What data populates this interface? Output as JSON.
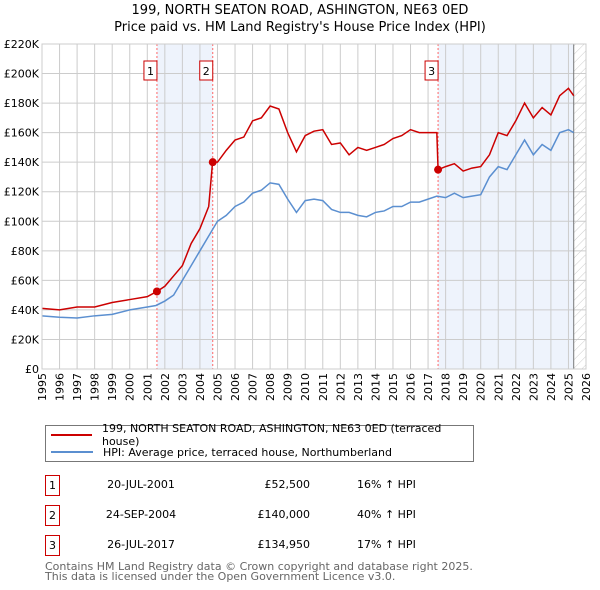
{
  "title": "199, NORTH SEATON ROAD, ASHINGTON, NE63 0ED",
  "subtitle": "Price paid vs. HM Land Registry's House Price Index (HPI)",
  "colors": {
    "property": "#cc0000",
    "hpi": "#5b8fd0",
    "shade": "#eef3fc"
  },
  "chart_data": {
    "type": "line",
    "xlim": [
      1995,
      2026
    ],
    "ylim": [
      0,
      220000
    ],
    "x_ticks": [
      "1995",
      "1996",
      "1997",
      "1998",
      "1999",
      "2000",
      "2001",
      "2002",
      "2003",
      "2004",
      "2005",
      "2006",
      "2007",
      "2008",
      "2009",
      "2010",
      "2011",
      "2012",
      "2013",
      "2014",
      "2015",
      "2016",
      "2017",
      "2018",
      "2019",
      "2020",
      "2021",
      "2022",
      "2023",
      "2024",
      "2025",
      "2026"
    ],
    "y_ticks": [
      {
        "v": 0,
        "label": "£0"
      },
      {
        "v": 20000,
        "label": "£20K"
      },
      {
        "v": 40000,
        "label": "£40K"
      },
      {
        "v": 60000,
        "label": "£60K"
      },
      {
        "v": 80000,
        "label": "£80K"
      },
      {
        "v": 100000,
        "label": "£100K"
      },
      {
        "v": 120000,
        "label": "£120K"
      },
      {
        "v": 140000,
        "label": "£140K"
      },
      {
        "v": 160000,
        "label": "£160K"
      },
      {
        "v": 180000,
        "label": "£180K"
      },
      {
        "v": 200000,
        "label": "£200K"
      },
      {
        "v": 220000,
        "label": "£220K"
      }
    ],
    "grid": true,
    "data_end": 2025.3,
    "series": [
      {
        "name": "199, NORTH SEATON ROAD, ASHINGTON, NE63 0ED (terraced house)",
        "color": "#cc0000",
        "points": [
          [
            1995,
            41
          ],
          [
            1996,
            40
          ],
          [
            1997,
            42
          ],
          [
            1998,
            42
          ],
          [
            1999,
            45
          ],
          [
            2000,
            47
          ],
          [
            2001,
            49
          ],
          [
            2001.55,
            52.5
          ],
          [
            2002,
            56
          ],
          [
            2002.5,
            63
          ],
          [
            2003,
            70
          ],
          [
            2003.5,
            85
          ],
          [
            2004,
            95
          ],
          [
            2004.5,
            110
          ],
          [
            2004.72,
            140
          ],
          [
            2005,
            140
          ],
          [
            2005.5,
            148
          ],
          [
            2006,
            155
          ],
          [
            2006.5,
            157
          ],
          [
            2007,
            168
          ],
          [
            2007.5,
            170
          ],
          [
            2008,
            178
          ],
          [
            2008.5,
            176
          ],
          [
            2009,
            160
          ],
          [
            2009.5,
            147
          ],
          [
            2010,
            158
          ],
          [
            2010.5,
            161
          ],
          [
            2011,
            162
          ],
          [
            2011.5,
            152
          ],
          [
            2012,
            153
          ],
          [
            2012.5,
            145
          ],
          [
            2013,
            150
          ],
          [
            2013.5,
            148
          ],
          [
            2014,
            150
          ],
          [
            2014.5,
            152
          ],
          [
            2015,
            156
          ],
          [
            2015.5,
            158
          ],
          [
            2016,
            162
          ],
          [
            2016.5,
            160
          ],
          [
            2017.5,
            160
          ],
          [
            2017.57,
            134.95
          ],
          [
            2018,
            137
          ],
          [
            2018.5,
            139
          ],
          [
            2019,
            134
          ],
          [
            2019.5,
            136
          ],
          [
            2020,
            137
          ],
          [
            2020.5,
            145
          ],
          [
            2021,
            160
          ],
          [
            2021.5,
            158
          ],
          [
            2022,
            168
          ],
          [
            2022.5,
            180
          ],
          [
            2023,
            170
          ],
          [
            2023.5,
            177
          ],
          [
            2024,
            172
          ],
          [
            2024.5,
            185
          ],
          [
            2025,
            190
          ],
          [
            2025.3,
            185
          ]
        ]
      },
      {
        "name": "HPI: Average price, terraced house, Northumberland",
        "color": "#5b8fd0",
        "points": [
          [
            1995,
            36
          ],
          [
            1996,
            35
          ],
          [
            1997,
            34.5
          ],
          [
            1998,
            36
          ],
          [
            1999,
            37
          ],
          [
            2000,
            40
          ],
          [
            2001,
            42
          ],
          [
            2001.5,
            43
          ],
          [
            2002,
            46
          ],
          [
            2002.5,
            50
          ],
          [
            2003,
            60
          ],
          [
            2003.5,
            70
          ],
          [
            2004,
            80
          ],
          [
            2004.5,
            90
          ],
          [
            2005,
            100
          ],
          [
            2005.5,
            104
          ],
          [
            2006,
            110
          ],
          [
            2006.5,
            113
          ],
          [
            2007,
            119
          ],
          [
            2007.5,
            121
          ],
          [
            2008,
            126
          ],
          [
            2008.5,
            125
          ],
          [
            2009,
            115
          ],
          [
            2009.5,
            106
          ],
          [
            2010,
            114
          ],
          [
            2010.5,
            115
          ],
          [
            2011,
            114
          ],
          [
            2011.5,
            108
          ],
          [
            2012,
            106
          ],
          [
            2012.5,
            106
          ],
          [
            2013,
            104
          ],
          [
            2013.5,
            103
          ],
          [
            2014,
            106
          ],
          [
            2014.5,
            107
          ],
          [
            2015,
            110
          ],
          [
            2015.5,
            110
          ],
          [
            2016,
            113
          ],
          [
            2016.5,
            113
          ],
          [
            2017,
            115
          ],
          [
            2017.5,
            117
          ],
          [
            2018,
            116
          ],
          [
            2018.5,
            119
          ],
          [
            2019,
            116
          ],
          [
            2019.5,
            117
          ],
          [
            2020,
            118
          ],
          [
            2020.5,
            130
          ],
          [
            2021,
            137
          ],
          [
            2021.5,
            135
          ],
          [
            2022,
            145
          ],
          [
            2022.5,
            155
          ],
          [
            2023,
            145
          ],
          [
            2023.5,
            152
          ],
          [
            2024,
            148
          ],
          [
            2024.5,
            160
          ],
          [
            2025,
            162
          ],
          [
            2025.3,
            160
          ]
        ]
      }
    ],
    "sales": [
      {
        "label": "1",
        "x": 2001.55,
        "value": 52500
      },
      {
        "label": "2",
        "x": 2004.73,
        "value": 140000
      },
      {
        "label": "3",
        "x": 2017.57,
        "value": 134950
      }
    ]
  },
  "legend": {
    "property": "199, NORTH SEATON ROAD, ASHINGTON, NE63 0ED (terraced house)",
    "hpi": "HPI: Average price, terraced house, Northumberland"
  },
  "transactions": [
    {
      "num": "1",
      "date": "20-JUL-2001",
      "price": "£52,500",
      "hpi": "16% ↑ HPI"
    },
    {
      "num": "2",
      "date": "24-SEP-2004",
      "price": "£140,000",
      "hpi": "40% ↑ HPI"
    },
    {
      "num": "3",
      "date": "26-JUL-2017",
      "price": "£134,950",
      "hpi": "17% ↑ HPI"
    }
  ],
  "footer": {
    "line1": "Contains HM Land Registry data © Crown copyright and database right 2025.",
    "line2": "This data is licensed under the Open Government Licence v3.0."
  }
}
